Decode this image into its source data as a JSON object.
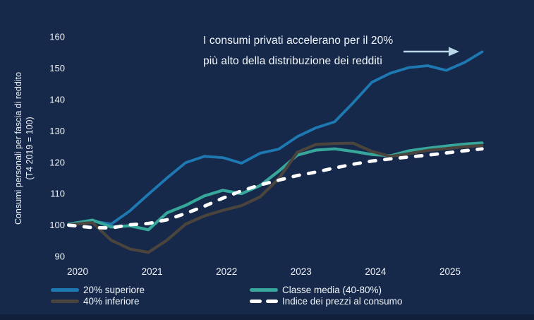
{
  "app": {
    "background_color": "#16294b",
    "footer_color": "#121f3a",
    "text_color": "#f2f6fa"
  },
  "chart_data": {
    "type": "line",
    "ylabel_line1": "Consumi personali per fascia di reddito",
    "ylabel_line2": "(T4 2019 = 100)",
    "ylim": [
      90,
      160
    ],
    "yticks": [
      160,
      150,
      140,
      130,
      120,
      110,
      100,
      90
    ],
    "xticks": [
      2020,
      2021,
      2022,
      2023,
      2024,
      2025
    ],
    "grid": false,
    "legend_position": "bottom",
    "x": [
      2019.88,
      2020.2,
      2020.45,
      2020.7,
      2020.95,
      2021.2,
      2021.45,
      2021.7,
      2021.95,
      2022.2,
      2022.45,
      2022.7,
      2022.95,
      2023.2,
      2023.45,
      2023.7,
      2023.95,
      2024.2,
      2024.45,
      2024.7,
      2024.95,
      2025.2,
      2025.43
    ],
    "series": [
      {
        "name": "20% superiore",
        "color": "#1e78b2",
        "dash": false,
        "width": 3.8,
        "values": [
          100.2,
          101.3,
          100.3,
          104.5,
          109.8,
          115.0,
          119.9,
          121.9,
          121.5,
          119.7,
          122.9,
          124.2,
          128.2,
          131.0,
          132.9,
          139.0,
          145.5,
          148.4,
          150.2,
          150.8,
          149.3,
          151.9,
          155.2
        ]
      },
      {
        "name": "Classe media (40-80%)",
        "color": "#37a69b",
        "dash": false,
        "width": 4.2,
        "values": [
          100.3,
          101.6,
          99.4,
          99.8,
          98.5,
          103.9,
          106.3,
          109.3,
          111.1,
          110.0,
          112.6,
          117.2,
          122.3,
          123.9,
          124.3,
          123.5,
          122.5,
          122.1,
          123.7,
          124.5,
          125.2,
          125.8,
          126.2
        ]
      },
      {
        "name": "40% inferiore",
        "color": "#4a443c",
        "dash": false,
        "width": 4.2,
        "values": [
          100.1,
          100.8,
          95.2,
          92.4,
          91.3,
          95.2,
          100.3,
          102.9,
          104.7,
          106.2,
          109.0,
          114.8,
          123.2,
          125.7,
          126.0,
          126.1,
          123.5,
          121.9,
          122.8,
          123.8,
          124.4,
          125.0,
          125.4
        ]
      },
      {
        "name": "Indice dei prezzi al consumo",
        "color": "#ffffff",
        "dash": true,
        "width": 4.8,
        "values": [
          100.0,
          99.2,
          99.1,
          100.1,
          100.5,
          101.7,
          103.7,
          106.0,
          108.6,
          110.9,
          112.8,
          114.3,
          115.8,
          116.9,
          118.2,
          119.4,
          120.4,
          121.1,
          121.7,
          122.3,
          123.0,
          123.7,
          124.3
        ]
      }
    ],
    "annotation": {
      "line1": "I consumi privati accelerano per il 20%",
      "line2": "più alto della distribuzione dei redditi",
      "arrow_color": "#b9d7e8"
    }
  }
}
